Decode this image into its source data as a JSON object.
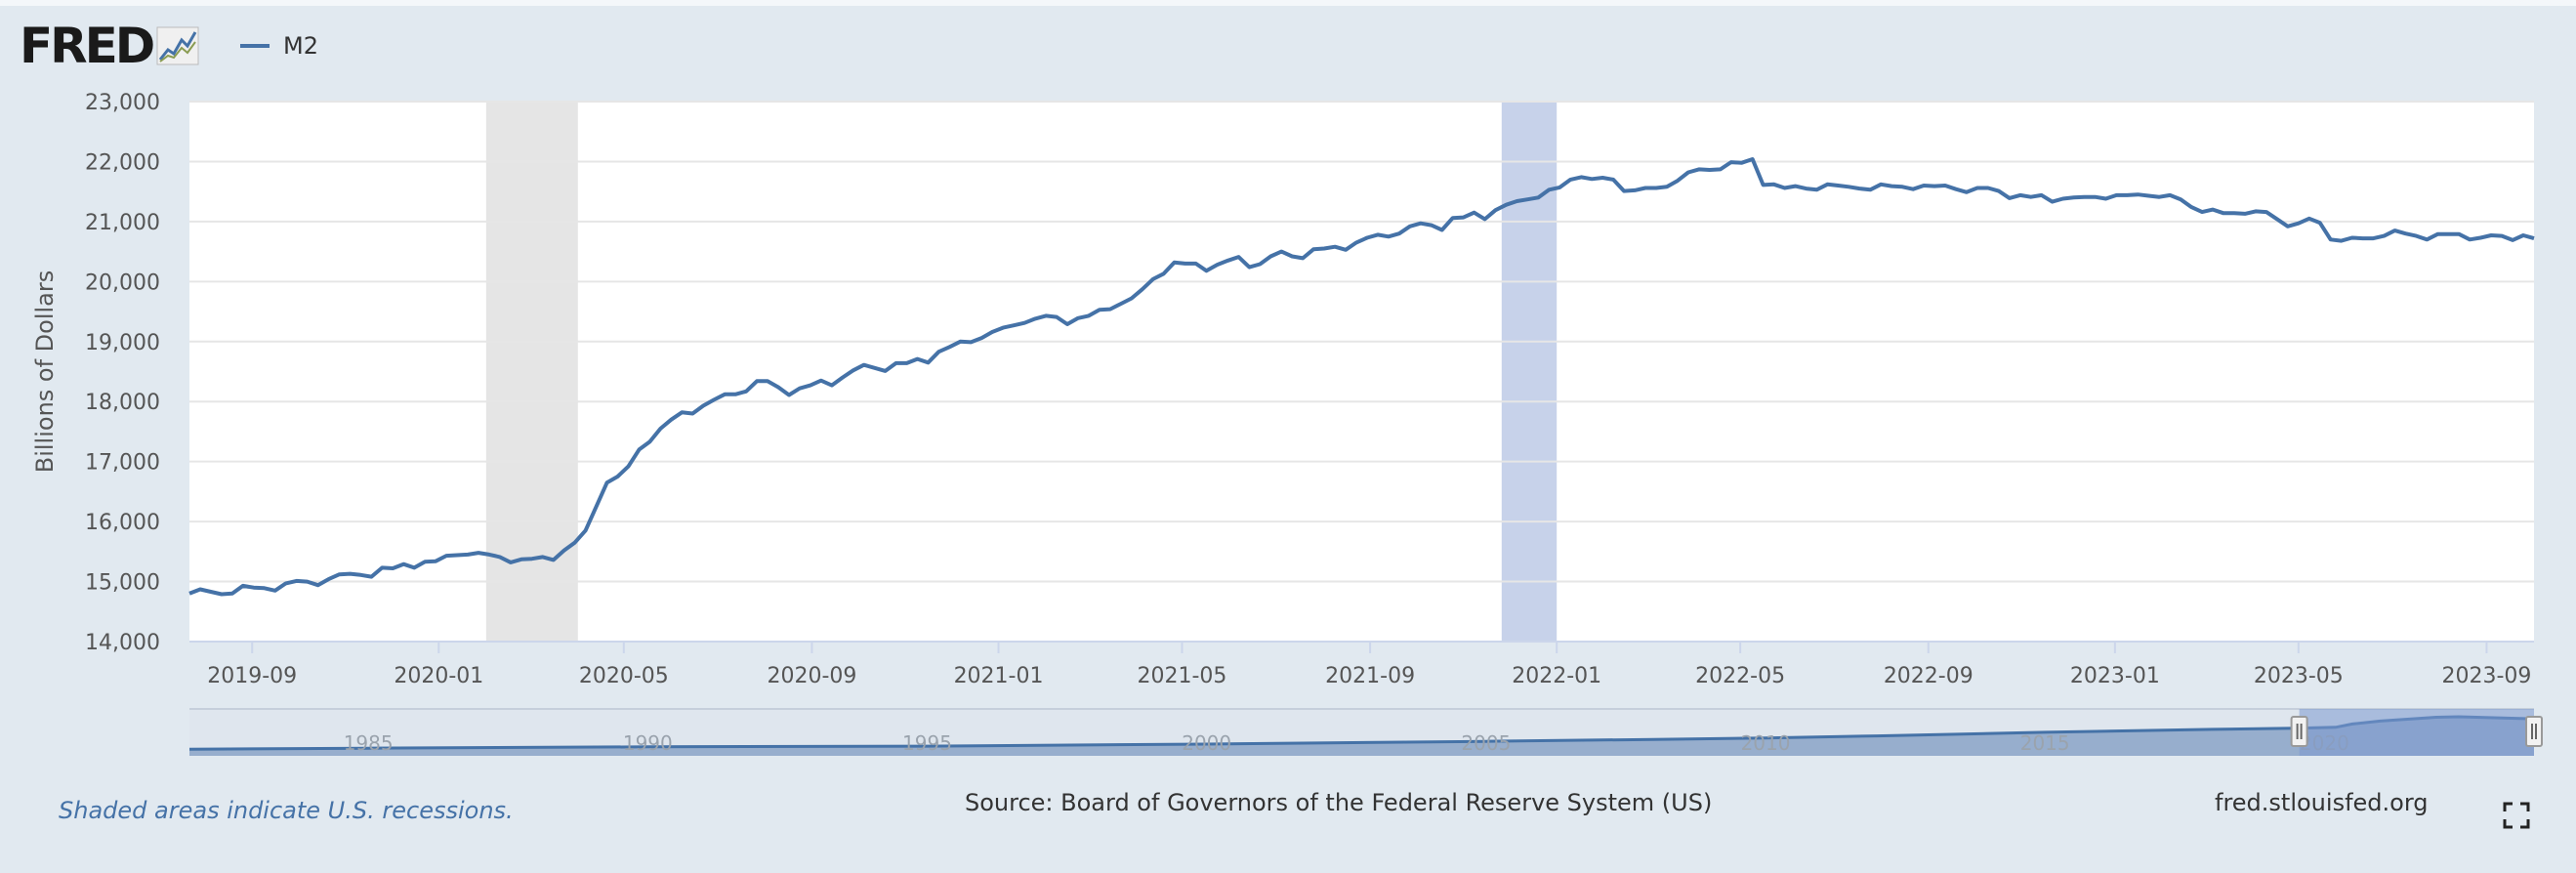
{
  "header": {
    "logo_text": "FRED",
    "legend_label": "M2",
    "icons": [
      "fred-logo-chart-icon",
      "fullscreen-icon"
    ]
  },
  "footer": {
    "note": "Shaded areas indicate U.S. recessions.",
    "source": "Source: Board of Governors of the Federal Reserve System (US)",
    "site": "fred.stlouisfed.org"
  },
  "colors": {
    "series": "#4572a7",
    "recession": "#e5e5e5",
    "selection": "#c7d2ea",
    "navigator_fill": "#8ba3c7",
    "navigator_selected": "#7c99cf"
  },
  "chart_data": {
    "type": "line",
    "title": "",
    "xlabel": "",
    "ylabel": "Billions of Dollars",
    "ylim": [
      14000,
      23000
    ],
    "yticks": [
      "14,000",
      "15,000",
      "16,000",
      "17,000",
      "18,000",
      "19,000",
      "20,000",
      "21,000",
      "22,000",
      "23,000"
    ],
    "xlim": [
      "2019-07-22",
      "2023-10-02"
    ],
    "xticks": [
      "2019-09",
      "2020-01",
      "2020-05",
      "2020-09",
      "2021-01",
      "2021-05",
      "2021-09",
      "2022-01",
      "2022-05",
      "2022-09",
      "2023-01",
      "2023-05",
      "2023-09"
    ],
    "grid": true,
    "legend": "top-left",
    "shaded_periods": [
      {
        "start": "2020-02-01",
        "end": "2020-04-01",
        "kind": "recession"
      },
      {
        "start": "2021-11-26",
        "end": "2022-01-01",
        "kind": "highlight"
      }
    ],
    "series": [
      {
        "name": "M2",
        "points": [
          [
            "2019-07-22",
            14800
          ],
          [
            "2019-07-29",
            14870
          ],
          [
            "2019-08-05",
            14830
          ],
          [
            "2019-08-12",
            14790
          ],
          [
            "2019-08-19",
            14800
          ],
          [
            "2019-08-26",
            14930
          ],
          [
            "2019-09-02",
            14900
          ],
          [
            "2019-09-09",
            14890
          ],
          [
            "2019-09-16",
            14850
          ],
          [
            "2019-09-23",
            14970
          ],
          [
            "2019-09-30",
            15010
          ],
          [
            "2019-10-07",
            15000
          ],
          [
            "2019-10-14",
            14940
          ],
          [
            "2019-10-21",
            15040
          ],
          [
            "2019-10-28",
            15120
          ],
          [
            "2019-11-04",
            15130
          ],
          [
            "2019-11-11",
            15110
          ],
          [
            "2019-11-18",
            15080
          ],
          [
            "2019-11-25",
            15230
          ],
          [
            "2019-12-02",
            15220
          ],
          [
            "2019-12-09",
            15290
          ],
          [
            "2019-12-16",
            15230
          ],
          [
            "2019-12-23",
            15330
          ],
          [
            "2019-12-30",
            15340
          ],
          [
            "2020-01-06",
            15430
          ],
          [
            "2020-01-13",
            15440
          ],
          [
            "2020-01-20",
            15450
          ],
          [
            "2020-01-27",
            15480
          ],
          [
            "2020-02-03",
            15450
          ],
          [
            "2020-02-10",
            15410
          ],
          [
            "2020-02-17",
            15320
          ],
          [
            "2020-02-24",
            15370
          ],
          [
            "2020-03-02",
            15380
          ],
          [
            "2020-03-09",
            15410
          ],
          [
            "2020-03-16",
            15360
          ],
          [
            "2020-03-23",
            15520
          ],
          [
            "2020-03-30",
            15650
          ],
          [
            "2020-04-06",
            15850
          ],
          [
            "2020-04-13",
            16250
          ],
          [
            "2020-04-20",
            16650
          ],
          [
            "2020-04-27",
            16750
          ],
          [
            "2020-05-04",
            16920
          ],
          [
            "2020-05-11",
            17200
          ],
          [
            "2020-05-18",
            17330
          ],
          [
            "2020-05-25",
            17550
          ],
          [
            "2020-06-01",
            17700
          ],
          [
            "2020-06-08",
            17820
          ],
          [
            "2020-06-15",
            17800
          ],
          [
            "2020-06-22",
            17930
          ],
          [
            "2020-06-29",
            18030
          ],
          [
            "2020-07-06",
            18120
          ],
          [
            "2020-07-13",
            18120
          ],
          [
            "2020-07-20",
            18170
          ],
          [
            "2020-07-27",
            18340
          ],
          [
            "2020-08-03",
            18340
          ],
          [
            "2020-08-10",
            18240
          ],
          [
            "2020-08-17",
            18110
          ],
          [
            "2020-08-24",
            18220
          ],
          [
            "2020-08-31",
            18270
          ],
          [
            "2020-09-07",
            18350
          ],
          [
            "2020-09-14",
            18270
          ],
          [
            "2020-09-21",
            18400
          ],
          [
            "2020-09-28",
            18520
          ],
          [
            "2020-10-05",
            18610
          ],
          [
            "2020-10-12",
            18560
          ],
          [
            "2020-10-19",
            18510
          ],
          [
            "2020-10-26",
            18640
          ],
          [
            "2020-11-02",
            18640
          ],
          [
            "2020-11-09",
            18710
          ],
          [
            "2020-11-16",
            18650
          ],
          [
            "2020-11-23",
            18830
          ],
          [
            "2020-11-30",
            18910
          ],
          [
            "2020-12-07",
            19000
          ],
          [
            "2020-12-14",
            18990
          ],
          [
            "2020-12-21",
            19060
          ],
          [
            "2020-12-28",
            19160
          ],
          [
            "2021-01-04",
            19230
          ],
          [
            "2021-01-11",
            19270
          ],
          [
            "2021-01-18",
            19310
          ],
          [
            "2021-01-25",
            19380
          ],
          [
            "2021-02-01",
            19430
          ],
          [
            "2021-02-08",
            19410
          ],
          [
            "2021-02-15",
            19290
          ],
          [
            "2021-02-22",
            19390
          ],
          [
            "2021-03-01",
            19430
          ],
          [
            "2021-03-08",
            19530
          ],
          [
            "2021-03-15",
            19540
          ],
          [
            "2021-03-22",
            19630
          ],
          [
            "2021-03-29",
            19720
          ],
          [
            "2021-04-05",
            19870
          ],
          [
            "2021-04-12",
            20040
          ],
          [
            "2021-04-19",
            20130
          ],
          [
            "2021-04-26",
            20320
          ],
          [
            "2021-05-03",
            20300
          ],
          [
            "2021-05-10",
            20300
          ],
          [
            "2021-05-17",
            20180
          ],
          [
            "2021-05-24",
            20280
          ],
          [
            "2021-05-31",
            20350
          ],
          [
            "2021-06-07",
            20410
          ],
          [
            "2021-06-14",
            20240
          ],
          [
            "2021-06-21",
            20290
          ],
          [
            "2021-06-28",
            20420
          ],
          [
            "2021-07-05",
            20500
          ],
          [
            "2021-07-12",
            20420
          ],
          [
            "2021-07-19",
            20390
          ],
          [
            "2021-07-26",
            20540
          ],
          [
            "2021-08-02",
            20550
          ],
          [
            "2021-08-09",
            20580
          ],
          [
            "2021-08-16",
            20530
          ],
          [
            "2021-08-23",
            20650
          ],
          [
            "2021-08-30",
            20730
          ],
          [
            "2021-09-06",
            20780
          ],
          [
            "2021-09-13",
            20750
          ],
          [
            "2021-09-20",
            20800
          ],
          [
            "2021-09-27",
            20920
          ],
          [
            "2021-10-04",
            20970
          ],
          [
            "2021-10-11",
            20940
          ],
          [
            "2021-10-18",
            20860
          ],
          [
            "2021-10-25",
            21060
          ],
          [
            "2021-11-01",
            21070
          ],
          [
            "2021-11-08",
            21150
          ],
          [
            "2021-11-15",
            21040
          ],
          [
            "2021-11-22",
            21190
          ],
          [
            "2021-11-29",
            21280
          ],
          [
            "2021-12-06",
            21340
          ],
          [
            "2021-12-13",
            21370
          ],
          [
            "2021-12-20",
            21400
          ],
          [
            "2021-12-27",
            21530
          ],
          [
            "2022-01-03",
            21570
          ],
          [
            "2022-01-10",
            21700
          ],
          [
            "2022-01-17",
            21740
          ],
          [
            "2022-01-24",
            21710
          ],
          [
            "2022-01-31",
            21730
          ],
          [
            "2022-02-07",
            21700
          ],
          [
            "2022-02-14",
            21510
          ],
          [
            "2022-02-21",
            21520
          ],
          [
            "2022-02-28",
            21560
          ],
          [
            "2022-03-07",
            21560
          ],
          [
            "2022-03-14",
            21580
          ],
          [
            "2022-03-21",
            21680
          ],
          [
            "2022-03-28",
            21820
          ],
          [
            "2022-04-04",
            21870
          ],
          [
            "2022-04-11",
            21860
          ],
          [
            "2022-04-18",
            21870
          ],
          [
            "2022-04-25",
            21990
          ],
          [
            "2022-05-02",
            21980
          ],
          [
            "2022-05-09",
            22040
          ],
          [
            "2022-05-16",
            21610
          ],
          [
            "2022-05-23",
            21620
          ],
          [
            "2022-05-30",
            21560
          ],
          [
            "2022-06-06",
            21590
          ],
          [
            "2022-06-13",
            21550
          ],
          [
            "2022-06-20",
            21530
          ],
          [
            "2022-06-27",
            21620
          ],
          [
            "2022-07-04",
            21600
          ],
          [
            "2022-07-11",
            21580
          ],
          [
            "2022-07-18",
            21550
          ],
          [
            "2022-07-25",
            21530
          ],
          [
            "2022-08-01",
            21620
          ],
          [
            "2022-08-08",
            21590
          ],
          [
            "2022-08-15",
            21580
          ],
          [
            "2022-08-22",
            21540
          ],
          [
            "2022-08-29",
            21600
          ],
          [
            "2022-09-05",
            21590
          ],
          [
            "2022-09-12",
            21600
          ],
          [
            "2022-09-19",
            21540
          ],
          [
            "2022-09-26",
            21490
          ],
          [
            "2022-10-03",
            21560
          ],
          [
            "2022-10-10",
            21560
          ],
          [
            "2022-10-17",
            21510
          ],
          [
            "2022-10-24",
            21390
          ],
          [
            "2022-10-31",
            21440
          ],
          [
            "2022-11-07",
            21410
          ],
          [
            "2022-11-14",
            21440
          ],
          [
            "2022-11-21",
            21330
          ],
          [
            "2022-11-28",
            21380
          ],
          [
            "2022-12-05",
            21400
          ],
          [
            "2022-12-12",
            21410
          ],
          [
            "2022-12-19",
            21410
          ],
          [
            "2022-12-26",
            21380
          ],
          [
            "2023-01-02",
            21440
          ],
          [
            "2023-01-09",
            21440
          ],
          [
            "2023-01-16",
            21450
          ],
          [
            "2023-01-23",
            21430
          ],
          [
            "2023-01-30",
            21410
          ],
          [
            "2023-02-06",
            21440
          ],
          [
            "2023-02-13",
            21370
          ],
          [
            "2023-02-20",
            21240
          ],
          [
            "2023-02-27",
            21160
          ],
          [
            "2023-03-06",
            21200
          ],
          [
            "2023-03-13",
            21140
          ],
          [
            "2023-03-20",
            21140
          ],
          [
            "2023-03-27",
            21130
          ],
          [
            "2023-04-03",
            21170
          ],
          [
            "2023-04-10",
            21160
          ],
          [
            "2023-04-17",
            21040
          ],
          [
            "2023-04-24",
            20920
          ],
          [
            "2023-05-01",
            20970
          ],
          [
            "2023-05-08",
            21050
          ],
          [
            "2023-05-15",
            20980
          ],
          [
            "2023-05-22",
            20700
          ],
          [
            "2023-05-29",
            20680
          ],
          [
            "2023-06-05",
            20730
          ],
          [
            "2023-06-12",
            20720
          ],
          [
            "2023-06-19",
            20720
          ],
          [
            "2023-06-26",
            20760
          ],
          [
            "2023-07-03",
            20850
          ],
          [
            "2023-07-10",
            20800
          ],
          [
            "2023-07-17",
            20760
          ],
          [
            "2023-07-24",
            20700
          ],
          [
            "2023-07-31",
            20790
          ],
          [
            "2023-08-07",
            20790
          ],
          [
            "2023-08-14",
            20790
          ],
          [
            "2023-08-21",
            20700
          ],
          [
            "2023-08-28",
            20730
          ],
          [
            "2023-09-04",
            20770
          ],
          [
            "2023-09-11",
            20760
          ],
          [
            "2023-09-18",
            20690
          ],
          [
            "2023-09-25",
            20770
          ],
          [
            "2023-10-02",
            20720
          ]
        ]
      }
    ],
    "navigator": {
      "ticks": [
        "1985",
        "1990",
        "1995",
        "2000",
        "2005",
        "2010",
        "2015",
        "2020"
      ],
      "xlim": [
        1981.8,
        2023.75
      ],
      "selected_range": [
        "2019-07",
        "2023-10"
      ],
      "values": [
        [
          1981.8,
          1700
        ],
        [
          1985,
          2300
        ],
        [
          1990,
          3200
        ],
        [
          1995,
          3600
        ],
        [
          2000,
          4900
        ],
        [
          2005,
          6600
        ],
        [
          2008,
          7800
        ],
        [
          2010,
          8700
        ],
        [
          2012,
          10000
        ],
        [
          2015,
          12300
        ],
        [
          2018,
          14100
        ],
        [
          2019.6,
          14900
        ],
        [
          2020.2,
          15400
        ],
        [
          2020.5,
          17500
        ],
        [
          2021,
          19300
        ],
        [
          2022,
          21700
        ],
        [
          2022.4,
          22000
        ],
        [
          2023.75,
          20700
        ]
      ]
    }
  }
}
